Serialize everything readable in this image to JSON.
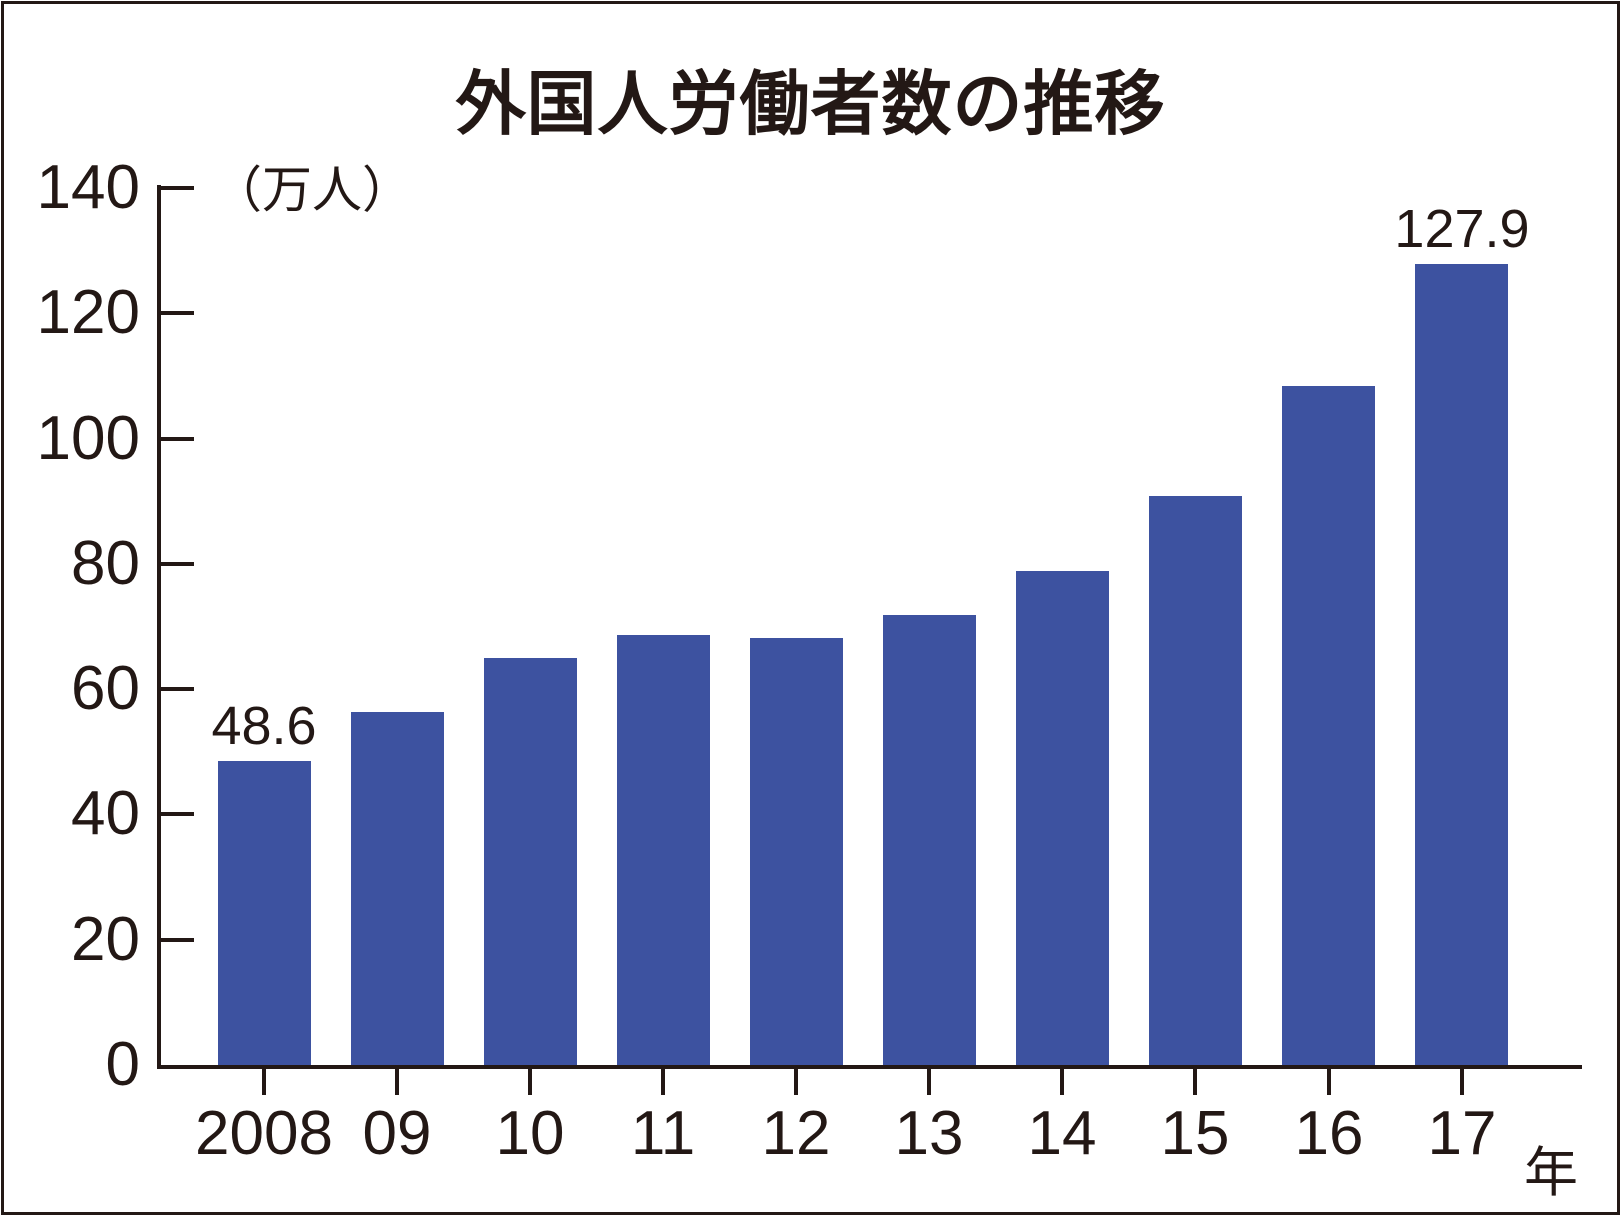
{
  "page": {
    "title": "外国人労働者数の推移"
  },
  "chart_data": {
    "type": "bar",
    "title": "外国人労働者数の推移",
    "y_unit_label": "（万人）",
    "x_unit_label": "年",
    "categories": [
      "2008",
      "09",
      "10",
      "11",
      "12",
      "13",
      "14",
      "15",
      "16",
      "17"
    ],
    "values": [
      48.6,
      56.3,
      64.9,
      68.6,
      68.2,
      71.8,
      78.8,
      90.8,
      108.4,
      127.9
    ],
    "value_labels": {
      "0": "48.6",
      "9": "127.9"
    },
    "ylim": [
      0,
      140
    ],
    "y_ticks": [
      0,
      20,
      40,
      60,
      80,
      100,
      120,
      140
    ],
    "grid": false,
    "legend_position": "none",
    "bar_color": "#3d52a0",
    "ink_color": "#231815"
  }
}
